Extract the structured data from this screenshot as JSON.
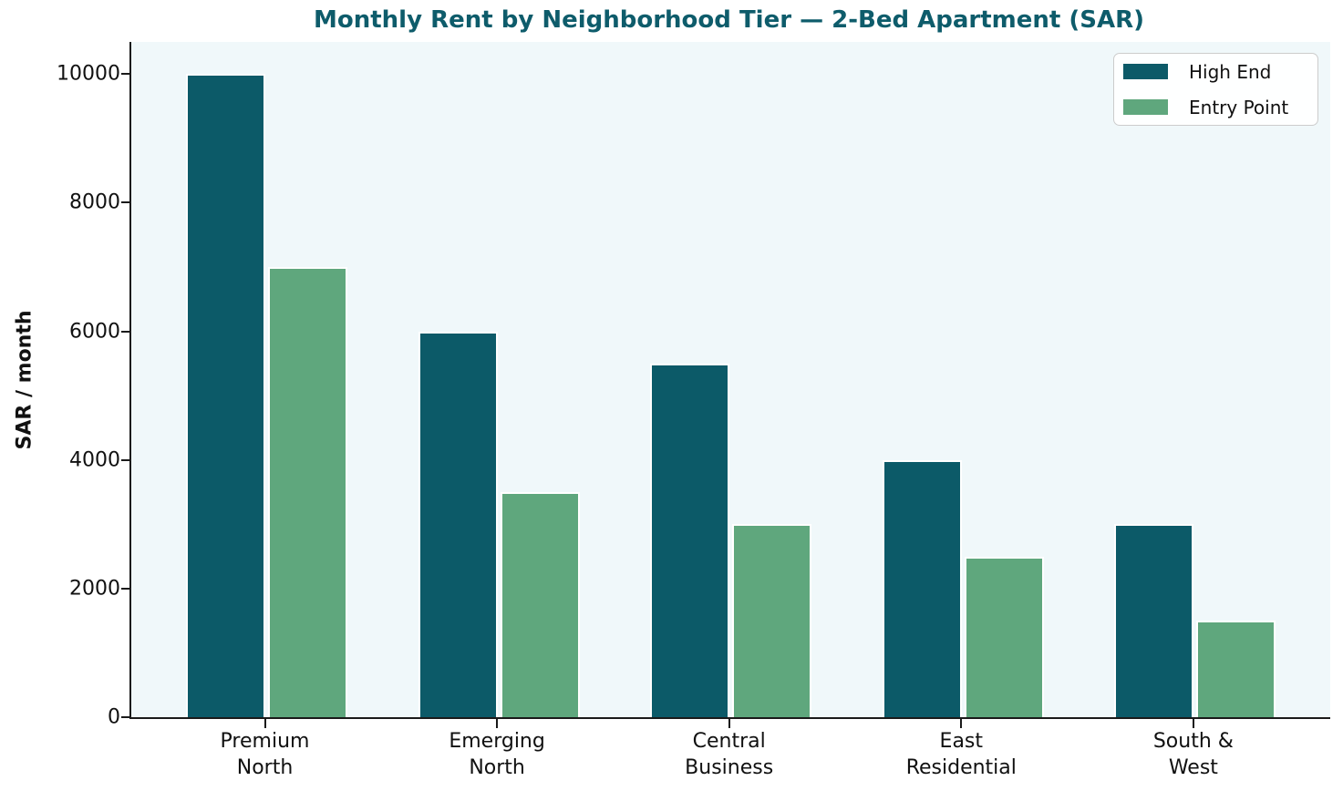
{
  "figure": {
    "title_color": "#0e5c6b",
    "plot_bg_color": "#f0f8fa",
    "axis_color": "#1a1a1a"
  },
  "chart_data": {
    "type": "bar",
    "title": "Monthly Rent by Neighborhood Tier — 2-Bed Apartment (SAR)",
    "xlabel": "",
    "ylabel": "SAR / month",
    "categories": [
      "Premium\nNorth",
      "Emerging\nNorth",
      "Central\nBusiness",
      "East\nResidential",
      "South &\nWest"
    ],
    "series": [
      {
        "name": "High End",
        "color": "#0c5a68",
        "values": [
          10000,
          6000,
          5500,
          4000,
          3000
        ]
      },
      {
        "name": "Entry Point",
        "color": "#5fa77d",
        "values": [
          7000,
          3500,
          3000,
          2500,
          1500
        ]
      }
    ],
    "ylim": [
      0,
      10500
    ],
    "yticks": [
      0,
      2000,
      4000,
      6000,
      8000,
      10000
    ],
    "grid": false,
    "legend": {
      "position": "upper right",
      "entries": [
        "High End",
        "Entry Point"
      ]
    }
  }
}
